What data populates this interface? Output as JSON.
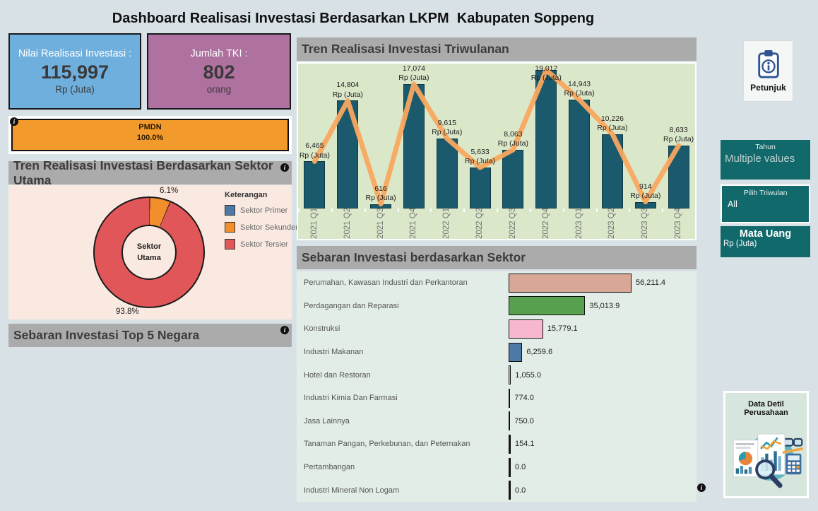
{
  "title": "Dashboard Realisasi Investasi Berdasarkan LKPM  Kabupaten Soppeng",
  "kpi": {
    "investasi": {
      "label": "Nilai Realisasi Investasi :",
      "value": "115,997",
      "unit": "Rp (Juta)"
    },
    "tki": {
      "label": "Jumlah TKI :",
      "value": "802",
      "unit": "orang"
    }
  },
  "pmdn": {
    "label": "PMDN",
    "value": "100.0%"
  },
  "sections": {
    "triwulanan": "Tren Realisasi Investasi Triwulanan",
    "sektor_utama": "Tren Realisasi Investasi Berdasarkan Sektor Utama",
    "top5_negara": "Sebaran Investasi Top 5 Negara",
    "sebaran_sektor": "Sebaran Investasi berdasarkan Sektor"
  },
  "chart_data": [
    {
      "type": "bar",
      "overlay": "line",
      "title": "Tren Realisasi Investasi Triwulanan",
      "categories": [
        "2021 Q1",
        "2021 Q2",
        "2021 Q3",
        "2021 Q4",
        "2022 Q1",
        "2022 Q2",
        "2022 Q3",
        "2022 Q4",
        "2023 Q1",
        "2023 Q2",
        "2023 Q3",
        "2023 Q4"
      ],
      "values": [
        6465,
        14804,
        616,
        17074,
        9615,
        5633,
        8063,
        19012,
        14943,
        10226,
        914,
        8633
      ],
      "unit": "Rp (Juta)",
      "ylim": [
        0,
        19800
      ],
      "bar_color": "#1A5A6C",
      "line_color": "#F9A85F",
      "background": "#DBE7C9"
    },
    {
      "type": "bar",
      "orientation": "horizontal",
      "title": "Sebaran Investasi berdasarkan Sektor",
      "categories": [
        "Perumahan, Kawasan Industri dan Perkantoran",
        "Perdagangan dan Reparasi",
        "Konstruksi",
        "Industri Makanan",
        "Hotel dan Restoran",
        "Industri Kimia Dan Farmasi",
        "Jasa Lainnya",
        "Tanaman Pangan, Perkebunan, dan Peternakan",
        "Pertambangan",
        "Industri Mineral Non Logam"
      ],
      "values": [
        56211.4,
        35013.9,
        15779.1,
        6259.6,
        1055.0,
        774.0,
        750.0,
        154.1,
        0.0,
        0.0
      ],
      "colors": [
        "#D9A795",
        "#58A14E",
        "#F7B8CF",
        "#4E79A7",
        "#B7D3EA",
        "#B2D3C2",
        "#E0584C",
        "#111111",
        "#111111",
        "#111111"
      ],
      "xlim": [
        0,
        60000
      ]
    },
    {
      "type": "pie",
      "title": "Tren Realisasi Investasi Berdasarkan Sektor Utama",
      "center_label": "Sektor Utama",
      "legend_title": "Keterangan",
      "legend_position": "right",
      "slices": [
        {
          "label": "Sektor Primer",
          "pct": 0.1,
          "pct_label": "",
          "color": "#4E79A7"
        },
        {
          "label": "Sektor Sekunder",
          "pct": 6.1,
          "pct_label": "6.1%",
          "color": "#F28E2B"
        },
        {
          "label": "Sektor Tersier",
          "pct": 93.8,
          "pct_label": "93.8%",
          "color": "#E15759"
        }
      ]
    }
  ],
  "filters": {
    "tahun": {
      "label": "Tahun",
      "value": "Multiple values"
    },
    "triwulan": {
      "label": "Pilih Triwulan",
      "value": "All"
    },
    "mata_uang": {
      "label": "Mata Uang",
      "value": "Rp (Juta)"
    }
  },
  "buttons": {
    "petunjuk": "Petunjuk",
    "data_detil": "Data Detil Perusahaan"
  },
  "icons": {
    "info": "info-circle",
    "petunjuk": "clipboard-info",
    "data_detil": "documents-magnifier-illustration"
  }
}
